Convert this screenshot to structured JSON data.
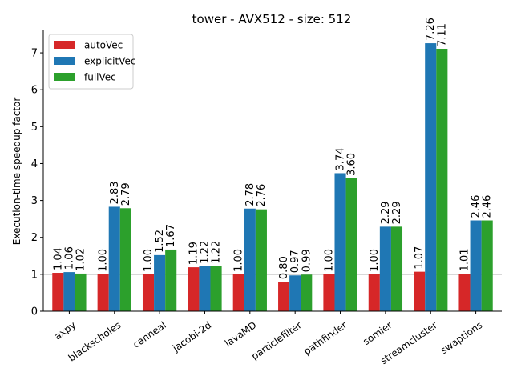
{
  "chart_data": {
    "type": "bar",
    "title": "tower - AVX512 - size: 512",
    "xlabel": "",
    "ylabel": "Execution-time speedup factor",
    "categories": [
      "axpy",
      "blackscholes",
      "canneal",
      "jacobi-2d",
      "lavaMD",
      "particlefilter",
      "pathfinder",
      "somier",
      "streamcluster",
      "swaptions"
    ],
    "series": [
      {
        "name": "autoVec",
        "color": "#d62728",
        "values": [
          1.04,
          1.0,
          1.0,
          1.19,
          1.0,
          0.8,
          1.0,
          1.0,
          1.07,
          1.01
        ],
        "labels": [
          "1.04",
          "1.00",
          "1.00",
          "1.19",
          "1.00",
          "0.80",
          "1.00",
          "1.00",
          "1.07",
          "1.01"
        ]
      },
      {
        "name": "explicitVec",
        "color": "#1f77b4",
        "values": [
          1.06,
          2.83,
          1.52,
          1.22,
          2.78,
          0.97,
          3.74,
          2.29,
          7.26,
          2.46
        ],
        "labels": [
          "1.06",
          "2.83",
          "1.52",
          "1.22",
          "2.78",
          "0.97",
          "3.74",
          "2.29",
          "7.26",
          "2.46"
        ]
      },
      {
        "name": "fullVec",
        "color": "#2ca02c",
        "values": [
          1.02,
          2.79,
          1.67,
          1.22,
          2.76,
          0.99,
          3.6,
          2.29,
          7.11,
          2.46
        ],
        "labels": [
          "1.02",
          "2.79",
          "1.67",
          "1.22",
          "2.76",
          "0.99",
          "3.60",
          "2.29",
          "7.11",
          "2.46"
        ]
      }
    ],
    "ylim": [
      0,
      7.63
    ],
    "yticks": [
      0,
      1,
      2,
      3,
      4,
      5,
      6,
      7
    ],
    "ytick_labels": [
      "0",
      "1",
      "2",
      "3",
      "4",
      "5",
      "6",
      "7"
    ],
    "reference_line": 1,
    "reference_line_color": "#b0b0b0",
    "grid": false,
    "legend_position": "top-left",
    "data_labels": true
  }
}
